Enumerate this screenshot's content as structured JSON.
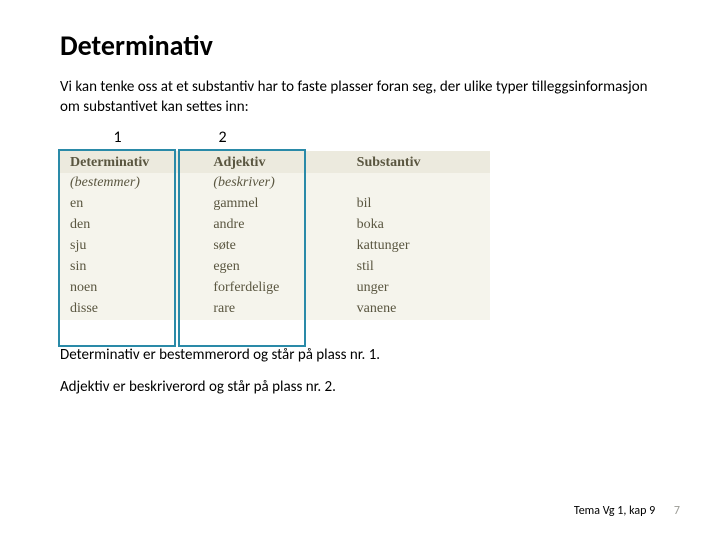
{
  "title": "Determinativ",
  "intro": "Vi kan tenke oss at et substantiv har to faste plasser foran seg, der ulike typer tilleggsinformasjon om substantivet kan settes inn:",
  "numbers": {
    "n1": "1",
    "n2": "2"
  },
  "table": {
    "headers": [
      "Determinativ",
      "Adjektiv",
      "Substantiv"
    ],
    "desc": [
      "(bestemmer)",
      "(beskriver)",
      ""
    ],
    "rows": [
      [
        "en",
        "gammel",
        "bil"
      ],
      [
        "den",
        "andre",
        "boka"
      ],
      [
        "sju",
        "søte",
        "kattunger"
      ],
      [
        "sin",
        "egen",
        "stil"
      ],
      [
        "noen",
        "forferdelige",
        "unger"
      ],
      [
        "disse",
        "rare",
        "vanene"
      ]
    ],
    "header_bg": "#eceade",
    "cell_bg": "#f5f4ec",
    "text_color": "#5a5640",
    "box_border_color": "#2a8aa8"
  },
  "note1": "Determinativ er bestemmerord og står på plass nr. 1.",
  "note2": "Adjektiv er beskriverord og står på plass nr. 2.",
  "footer": {
    "ref": "Tema Vg 1, kap 9",
    "page": "7"
  }
}
